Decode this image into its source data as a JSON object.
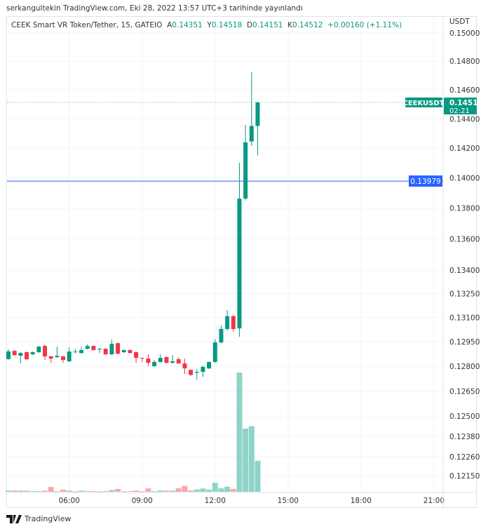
{
  "header": {
    "published": "serkangultekin TradingView.com, Eki 28, 2022 13:57 UTC+3 tarihinde yayınlandı"
  },
  "legend": {
    "symbol": "CEEK Smart VR Token/Tether, 15, GATEIO",
    "o_label": "A",
    "o": "0.14351",
    "h_label": "Y",
    "h": "0.14518",
    "l_label": "D",
    "l": "0.14151",
    "c_label": "K",
    "c": "0.14512",
    "change": "+0.00160 (+1.11%)"
  },
  "footer": {
    "brand": "TradingView"
  },
  "colors": {
    "up": "#089981",
    "down": "#f23645",
    "up_volume": "#8fd3c8",
    "down_volume": "#f7a9a7",
    "line": "#2962ff"
  },
  "chart_data": {
    "type": "candlestick",
    "interval": "15",
    "y_scale": "log",
    "y_unit": "USDT",
    "ylim": [
      0.121,
      0.1502
    ],
    "y_ticks": [
      "0.15000",
      "0.14800",
      "0.14600",
      "0.14400",
      "0.14200",
      "0.14000",
      "0.13800",
      "0.13600",
      "0.13400",
      "0.13250",
      "0.13100",
      "0.12950",
      "0.12800",
      "0.12650",
      "0.12500",
      "0.12380",
      "0.12260",
      "0.12150"
    ],
    "x_ticks": [
      "06:00",
      "09:00",
      "12:00",
      "15:00",
      "18:00",
      "21:00"
    ],
    "grid": true,
    "first_bar_time": "03:30",
    "last_price_label": {
      "symbol": "CEEKUSDT",
      "price": "0.14512",
      "countdown": "02:21"
    },
    "horizontal_line": {
      "price": "0.13979"
    },
    "ohlc": [
      [
        0.12844,
        0.12903,
        0.12839,
        0.12891
      ],
      [
        0.12894,
        0.12899,
        0.12864,
        0.12868
      ],
      [
        0.12864,
        0.12886,
        0.12817,
        0.12881
      ],
      [
        0.12886,
        0.1289,
        0.12838,
        0.12843
      ],
      [
        0.12873,
        0.1289,
        0.12868,
        0.12886
      ],
      [
        0.12886,
        0.12924,
        0.12881,
        0.1292
      ],
      [
        0.12924,
        0.12933,
        0.12838,
        0.1286
      ],
      [
        0.1286,
        0.12864,
        0.12821,
        0.12847
      ],
      [
        0.12856,
        0.1292,
        0.12851,
        0.12864
      ],
      [
        0.1286,
        0.12864,
        0.12821,
        0.12838
      ],
      [
        0.1283,
        0.12916,
        0.12826,
        0.1289
      ],
      [
        0.12886,
        0.12907,
        0.12881,
        0.1289
      ],
      [
        0.12881,
        0.1292,
        0.12877,
        0.12899
      ],
      [
        0.12907,
        0.12933,
        0.12903,
        0.12924
      ],
      [
        0.12924,
        0.12928,
        0.12894,
        0.12899
      ],
      [
        0.12903,
        0.12911,
        0.12881,
        0.12907
      ],
      [
        0.12907,
        0.12911,
        0.12868,
        0.12873
      ],
      [
        0.12873,
        0.12963,
        0.12868,
        0.12937
      ],
      [
        0.12941,
        0.12946,
        0.12873,
        0.12877
      ],
      [
        0.12886,
        0.12903,
        0.12881,
        0.12899
      ],
      [
        0.12899,
        0.12903,
        0.12877,
        0.12881
      ],
      [
        0.12886,
        0.1289,
        0.12821,
        0.12851
      ],
      [
        0.12851,
        0.12853,
        0.12826,
        0.12847
      ],
      [
        0.12847,
        0.12873,
        0.128,
        0.12821
      ],
      [
        0.128,
        0.12838,
        0.12798,
        0.12826
      ],
      [
        0.12826,
        0.12873,
        0.12822,
        0.12851
      ],
      [
        0.12856,
        0.1286,
        0.12817,
        0.12821
      ],
      [
        0.12821,
        0.12868,
        0.12817,
        0.1283
      ],
      [
        0.12843,
        0.12856,
        0.12815,
        0.12817
      ],
      [
        0.12817,
        0.12847,
        0.12753,
        0.12787
      ],
      [
        0.12778,
        0.1278,
        0.1274,
        0.12748
      ],
      [
        0.12761,
        0.12783,
        0.12718,
        0.12766
      ],
      [
        0.12766,
        0.12804,
        0.12736,
        0.12796
      ],
      [
        0.12787,
        0.1283,
        0.12783,
        0.12826
      ],
      [
        0.12826,
        0.12967,
        0.1282,
        0.12946
      ],
      [
        0.12946,
        0.13051,
        0.1294,
        0.13029
      ],
      [
        0.13029,
        0.13146,
        0.1302,
        0.13109
      ],
      [
        0.13109,
        0.13115,
        0.13012,
        0.13029
      ],
      [
        0.13033,
        0.14101,
        0.12981,
        0.13863
      ],
      [
        0.13863,
        0.14358,
        0.1385,
        0.14239
      ],
      [
        0.14245,
        0.14722,
        0.14215,
        0.14351
      ],
      [
        0.14351,
        0.14518,
        0.14151,
        0.14512
      ]
    ],
    "volume_relative": [
      1,
      1.2,
      1,
      1,
      0.6,
      0.6,
      1,
      4,
      0.3,
      1.8,
      1,
      0.3,
      1,
      0.5,
      0.6,
      0.3,
      0.6,
      1.5,
      2.4,
      0.4,
      0.6,
      1,
      0.3,
      2.8,
      0.5,
      1.2,
      1,
      1,
      3,
      5,
      1.2,
      2,
      2.8,
      1.8,
      7.5,
      3,
      4.3,
      2.4,
      100,
      53,
      55,
      26
    ]
  }
}
